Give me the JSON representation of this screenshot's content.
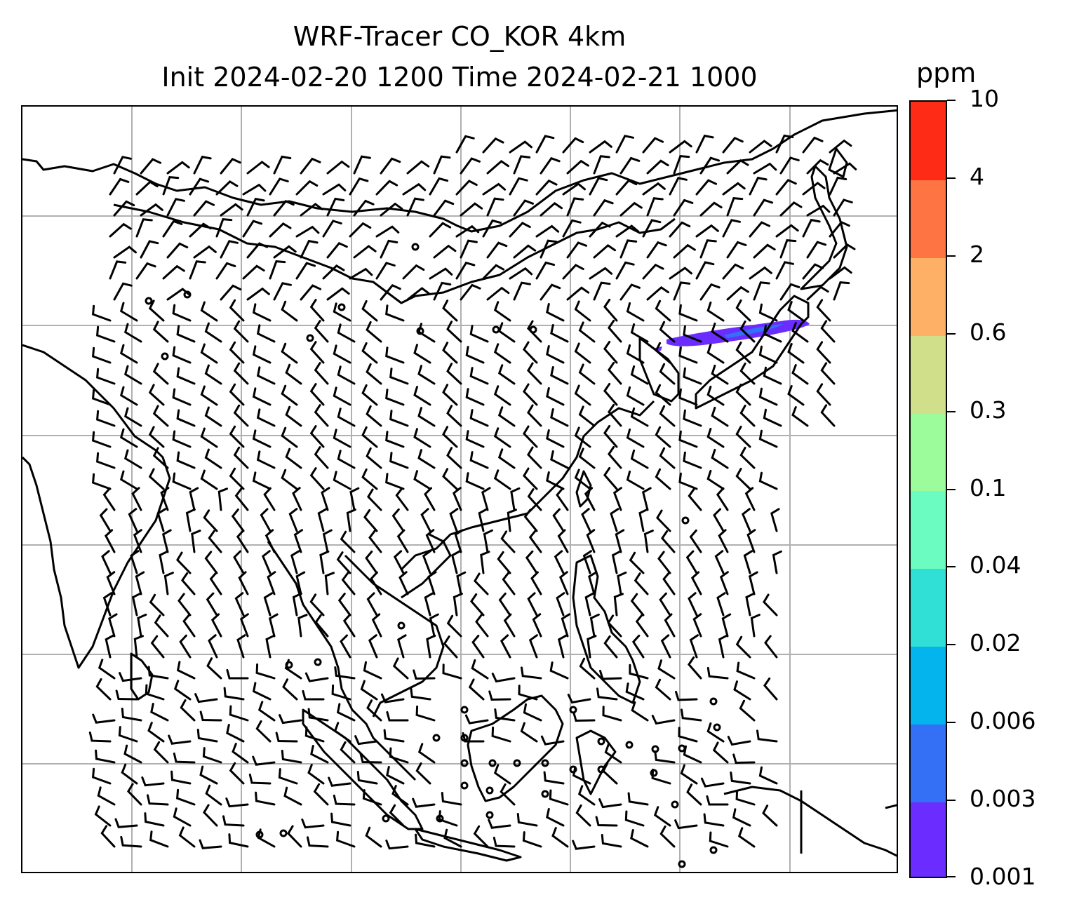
{
  "title": {
    "line1": "WRF-Tracer CO_KOR 4km",
    "line2": "Init 2024-02-20 1200 Time 2024-02-21 1000"
  },
  "colorbar": {
    "unit": "ppm",
    "levels": [
      "0.001",
      "0.003",
      "0.006",
      "0.02",
      "0.04",
      "0.1",
      "0.3",
      "0.6",
      "2",
      "4",
      "10"
    ],
    "colors": [
      "#6a2cff",
      "#3370f5",
      "#04b4ec",
      "#30e0d6",
      "#6afcc1",
      "#9cfc9c",
      "#d0e08a",
      "#fdb066",
      "#fe7442",
      "#fe2c16"
    ]
  },
  "map": {
    "gridlines": true,
    "plume": {
      "description_level": "0.001-0.003 ppm",
      "core_level": "0.003-0.006 ppm"
    },
    "wind_barbs": "shown",
    "calm_markers": "shown"
  }
}
